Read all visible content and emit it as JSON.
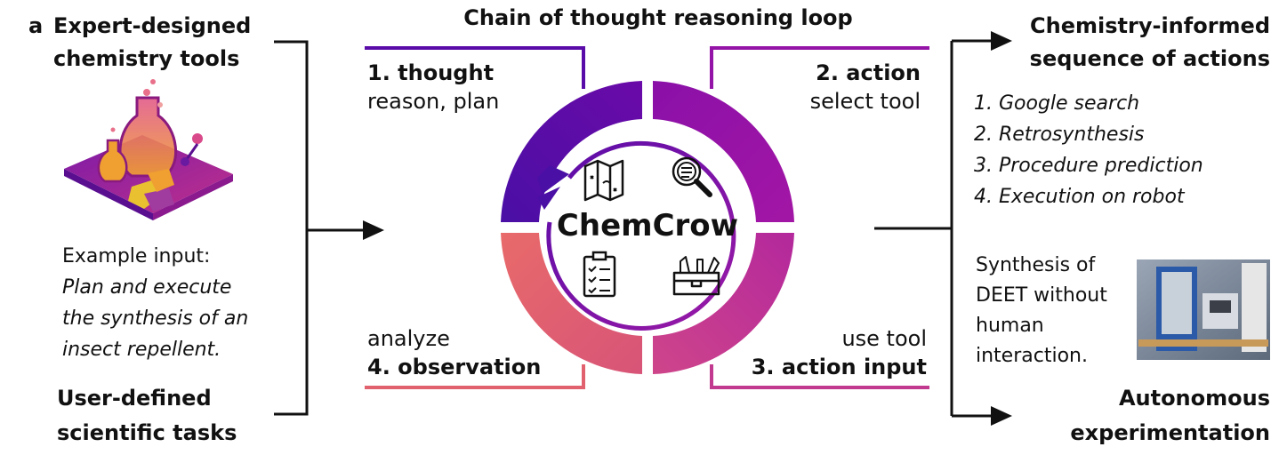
{
  "panel_letter": "a",
  "left": {
    "tools_line1": "Expert-designed",
    "tools_line2": "chemistry tools",
    "example_label": "Example input:",
    "example_text": [
      "Plan and execute",
      "the synthesis of an",
      "insect repellent."
    ],
    "tasks_line1": "User-defined",
    "tasks_line2": "scientific tasks"
  },
  "center": {
    "title": "Chain of thought reasoning loop",
    "name": "ChemCrow",
    "step1_title": "1. thought",
    "step1_sub": "reason, plan",
    "step2_title": "2. action",
    "step2_sub": "select tool",
    "step3_sub": "use tool",
    "step3_title": "3. action input",
    "step4_sub": "analyze",
    "step4_title": "4. observation",
    "icons": [
      "map-icon",
      "magnifier-icon",
      "clipboard-checklist-icon",
      "toolbox-icon"
    ]
  },
  "right": {
    "sequence_line1": "Chemistry-informed",
    "sequence_line2": "sequence of actions",
    "actions": [
      "1. Google search",
      "2. Retrosynthesis",
      "3. Procedure prediction",
      "4. Execution on robot"
    ],
    "synthesis_text": [
      "Synthesis of",
      "DEET without",
      "human",
      "interaction."
    ],
    "autonomous_line1": "Autonomous",
    "autonomous_line2": "experimentation"
  },
  "colors": {
    "thought": "#5a0ca8",
    "action": "#9514a8",
    "action_input": "#c23a90",
    "observation": "#e2616e"
  }
}
